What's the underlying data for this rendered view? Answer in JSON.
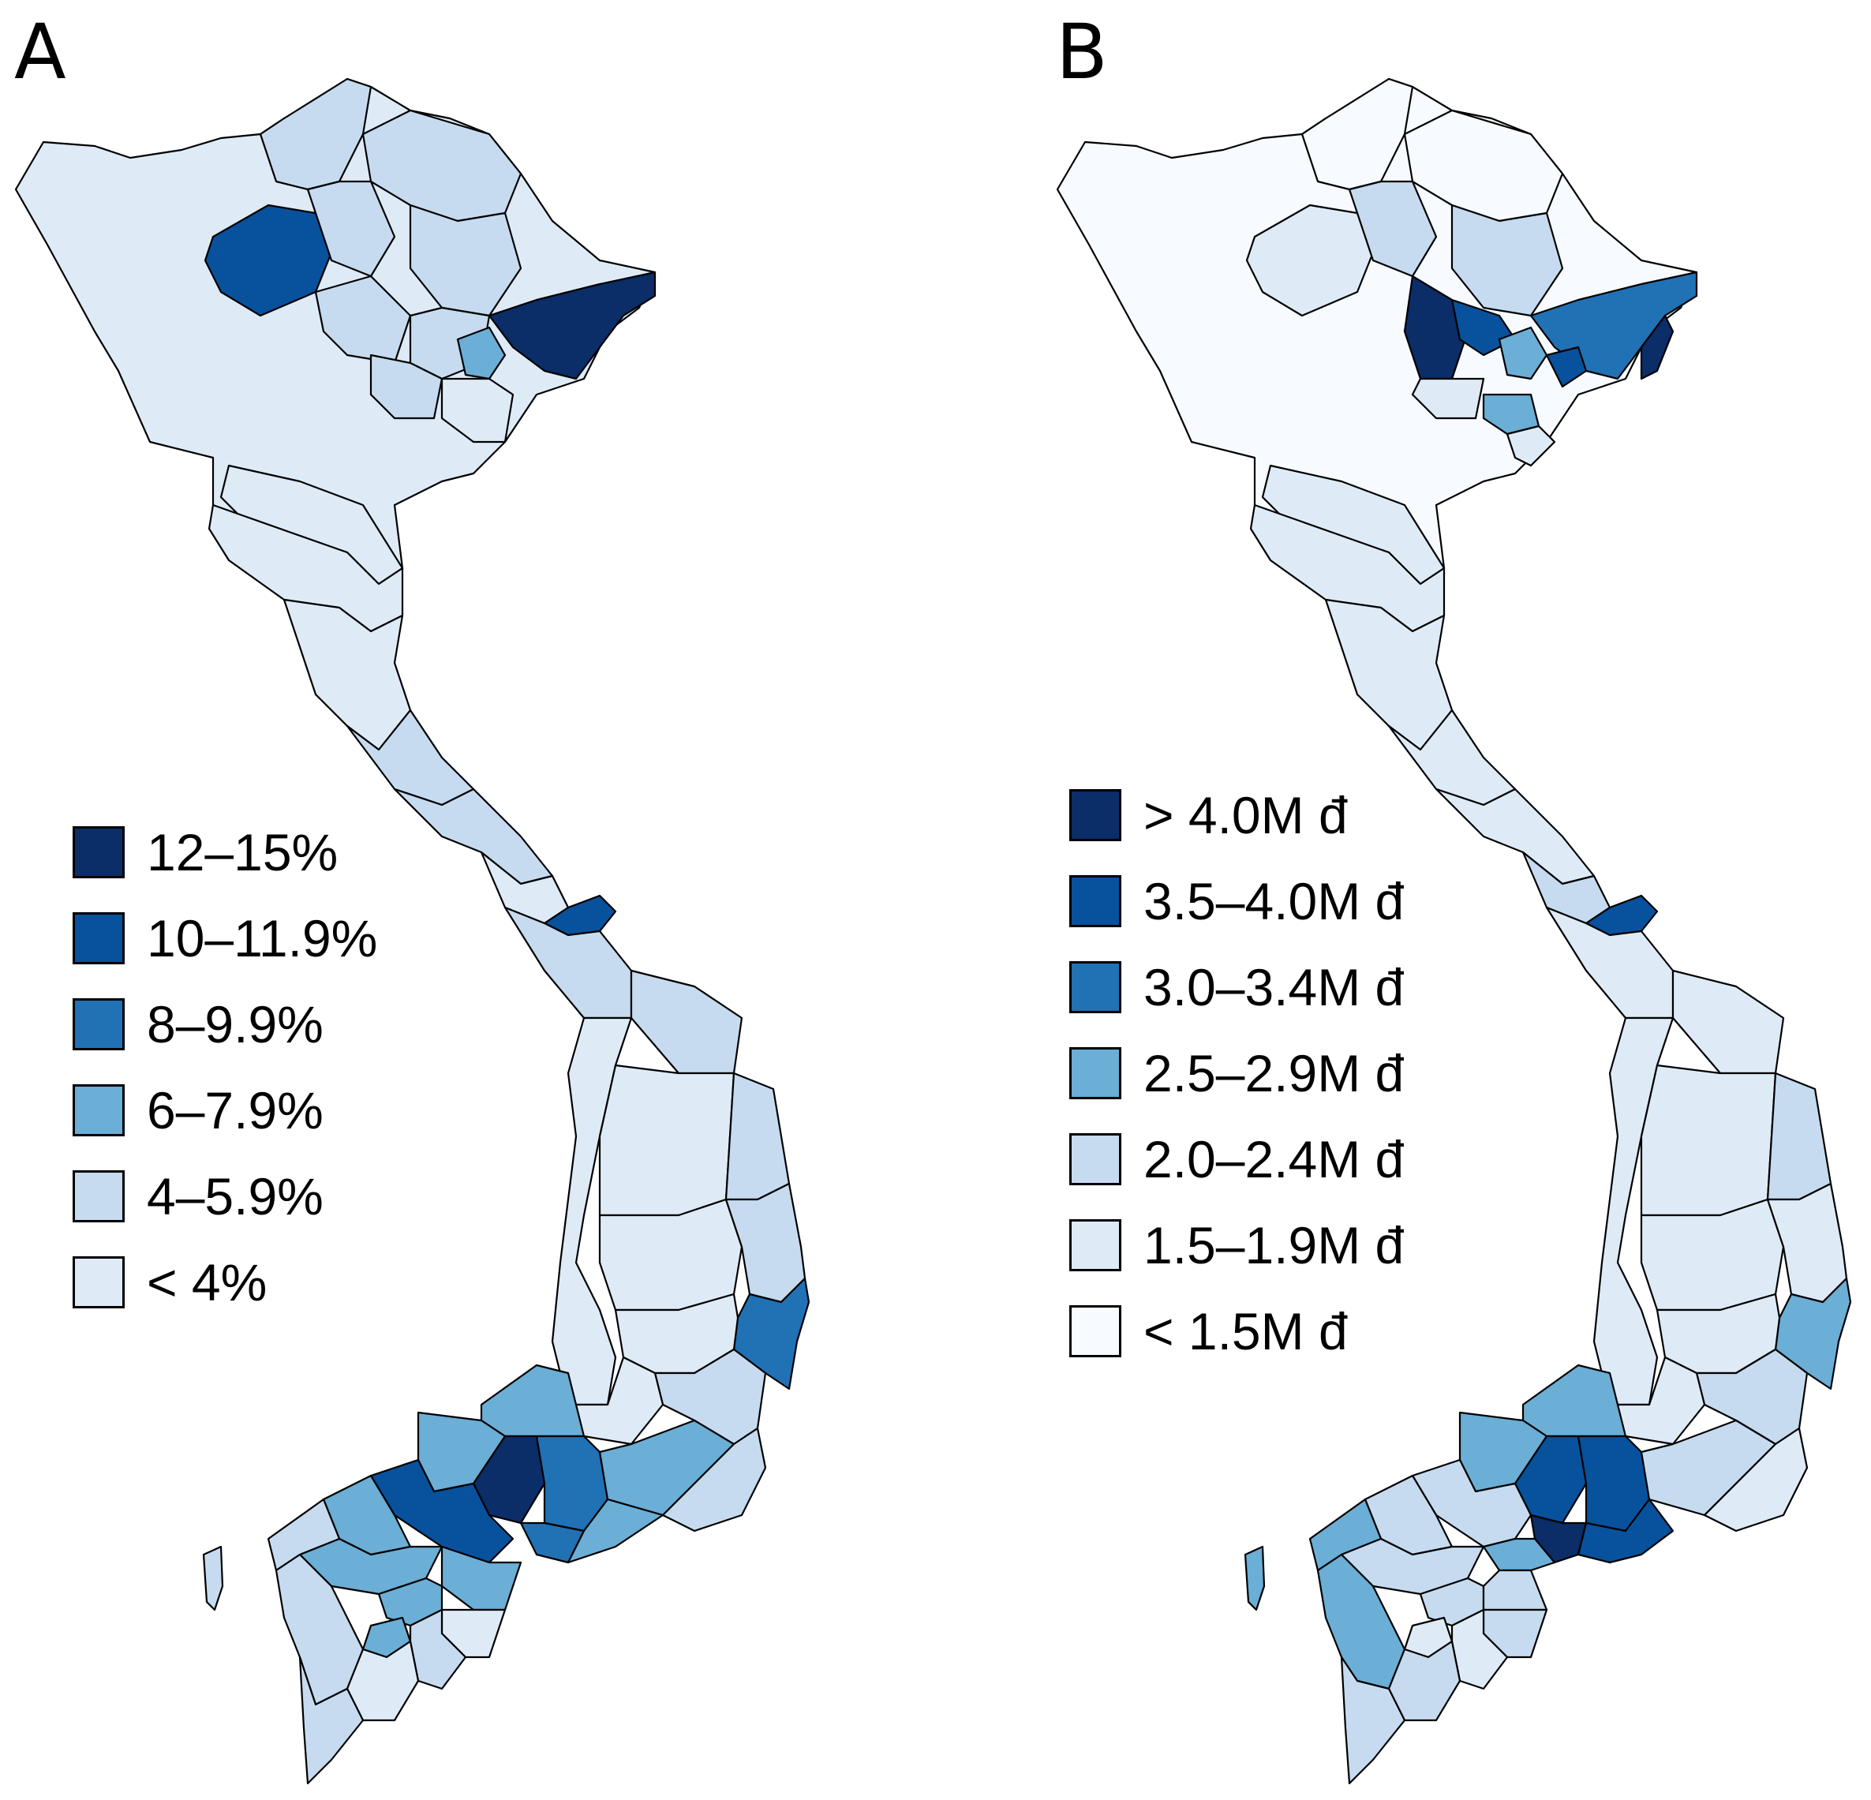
{
  "panels": [
    {
      "label": "A",
      "legend": [
        {
          "label": "12–15%",
          "color": "#0b2d68"
        },
        {
          "label": "10–11.9%",
          "color": "#08519c"
        },
        {
          "label": "8–9.9%",
          "color": "#2171b5"
        },
        {
          "label": "6–7.9%",
          "color": "#6baed6"
        },
        {
          "label": "4–5.9%",
          "color": "#c6dbef"
        },
        {
          "label": "< 4%",
          "color": "#deebf7"
        }
      ]
    },
    {
      "label": "B",
      "legend": [
        {
          "label": "> 4.0M đ",
          "color": "#0b2d68"
        },
        {
          "label": "3.5–4.0M đ",
          "color": "#08519c"
        },
        {
          "label": "3.0–3.4M đ",
          "color": "#2171b5"
        },
        {
          "label": "2.5–2.9M đ",
          "color": "#6baed6"
        },
        {
          "label": "2.0–2.4M đ",
          "color": "#c6dbef"
        },
        {
          "label": "1.5–1.9M đ",
          "color": "#deebf7"
        },
        {
          "label": "< 1.5M đ",
          "color": "#f7fbff"
        }
      ]
    }
  ],
  "colors": {
    "outline": "#000000",
    "background": "#ffffff"
  }
}
